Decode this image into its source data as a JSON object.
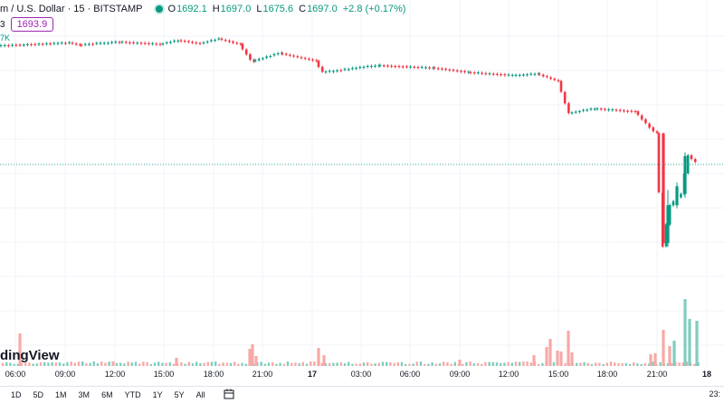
{
  "header": {
    "symbol": "m / U.S. Dollar · 15 · BITSTAMP",
    "o_label": "O",
    "o_value": "1692.1",
    "h_label": "H",
    "h_value": "1697.0",
    "l_label": "L",
    "l_value": "1675.6",
    "c_label": "C",
    "c_value": "1697.0",
    "change": "+2.8 (+0.17%)",
    "row2_fragment": "3",
    "price_box": "1693.9",
    "row3_fragment": "7K"
  },
  "watermark": "dingView",
  "time_axis": [
    {
      "label": "06:00",
      "bold": false
    },
    {
      "label": "09:00",
      "bold": false
    },
    {
      "label": "12:00",
      "bold": false
    },
    {
      "label": "15:00",
      "bold": false
    },
    {
      "label": "18:00",
      "bold": false
    },
    {
      "label": "21:00",
      "bold": false
    },
    {
      "label": "17",
      "bold": true
    },
    {
      "label": "03:00",
      "bold": false
    },
    {
      "label": "06:00",
      "bold": false
    },
    {
      "label": "09:00",
      "bold": false
    },
    {
      "label": "12:00",
      "bold": false
    },
    {
      "label": "15:00",
      "bold": false
    },
    {
      "label": "18:00",
      "bold": false
    },
    {
      "label": "21:00",
      "bold": false
    },
    {
      "label": "18",
      "bold": true
    }
  ],
  "bottom_bar": {
    "ranges": [
      "1D",
      "5D",
      "1M",
      "3M",
      "6M",
      "YTD",
      "1Y",
      "5Y",
      "All"
    ],
    "calendar_icon": "calendar-icon",
    "tz_fragment": "23:"
  },
  "colors": {
    "up": "#089981",
    "down": "#f23645",
    "up_volume": "#7fcdbf",
    "down_volume": "#f7a9a7",
    "price_line": "#26a69a",
    "accent": "#9c27b0"
  },
  "chart_data": {
    "type": "candlestick",
    "title": "",
    "interval": "15",
    "exchange": "BITSTAMP",
    "segments": [
      {
        "from": 1,
        "to": 80,
        "open": 1851,
        "close": 1855
      },
      {
        "from": 80,
        "to": 90,
        "open": 1855,
        "close": 1852
      },
      {
        "from": 90,
        "to": 135,
        "open": 1852,
        "close": 1856
      },
      {
        "from": 135,
        "to": 180,
        "open": 1856,
        "close": 1853
      },
      {
        "from": 180,
        "to": 200,
        "open": 1853,
        "close": 1858
      },
      {
        "from": 200,
        "to": 225,
        "open": 1858,
        "close": 1854
      },
      {
        "from": 225,
        "to": 245,
        "open": 1854,
        "close": 1860
      },
      {
        "from": 245,
        "to": 268,
        "open": 1860,
        "close": 1853
      },
      {
        "from": 268,
        "to": 282,
        "open": 1853,
        "close": 1830
      },
      {
        "from": 282,
        "to": 312,
        "open": 1830,
        "close": 1841
      },
      {
        "from": 312,
        "to": 352,
        "open": 1841,
        "close": 1831
      },
      {
        "from": 352,
        "to": 360,
        "open": 1831,
        "close": 1816
      },
      {
        "from": 360,
        "to": 420,
        "open": 1816,
        "close": 1825
      },
      {
        "from": 420,
        "to": 480,
        "open": 1825,
        "close": 1822
      },
      {
        "from": 480,
        "to": 520,
        "open": 1822,
        "close": 1816
      },
      {
        "from": 520,
        "to": 570,
        "open": 1816,
        "close": 1812
      },
      {
        "from": 570,
        "to": 596,
        "open": 1812,
        "close": 1814
      },
      {
        "from": 596,
        "to": 620,
        "open": 1814,
        "close": 1804
      },
      {
        "from": 620,
        "to": 632,
        "open": 1804,
        "close": 1762
      },
      {
        "from": 632,
        "to": 660,
        "open": 1762,
        "close": 1768
      },
      {
        "from": 660,
        "to": 705,
        "open": 1768,
        "close": 1764
      },
      {
        "from": 705,
        "to": 728,
        "open": 1764,
        "close": 1735
      },
      {
        "from": 728,
        "to": 736,
        "open": 1735,
        "close": 1586
      },
      {
        "from": 736,
        "to": 744,
        "open": 1586,
        "close": 1640
      },
      {
        "from": 744,
        "to": 756,
        "open": 1640,
        "close": 1655
      },
      {
        "from": 756,
        "to": 764,
        "open": 1655,
        "close": 1706
      },
      {
        "from": 764,
        "to": 772,
        "open": 1706,
        "close": 1697
      }
    ],
    "big_candles": [
      {
        "x": 733,
        "open": 1735,
        "high": 1736,
        "low": 1588,
        "close": 1590
      },
      {
        "x": 738,
        "open": 1590,
        "high": 1660,
        "low": 1585,
        "close": 1640
      },
      {
        "x": 748,
        "open": 1640,
        "high": 1670,
        "low": 1636,
        "close": 1665
      },
      {
        "x": 757,
        "open": 1655,
        "high": 1710,
        "low": 1650,
        "close": 1705
      }
    ],
    "last_price": 1693.9,
    "volume_spikes": [
      {
        "x": 22,
        "v": 36
      },
      {
        "x": 125,
        "v": 5
      },
      {
        "x": 195,
        "v": 9
      },
      {
        "x": 276,
        "v": 19
      },
      {
        "x": 279,
        "v": 24
      },
      {
        "x": 283,
        "v": 11
      },
      {
        "x": 352,
        "v": 20
      },
      {
        "x": 358,
        "v": 12
      },
      {
        "x": 508,
        "v": 7
      },
      {
        "x": 590,
        "v": 12
      },
      {
        "x": 604,
        "v": 21
      },
      {
        "x": 608,
        "v": 30
      },
      {
        "x": 616,
        "v": 17
      },
      {
        "x": 620,
        "v": 16
      },
      {
        "x": 628,
        "v": 39
      },
      {
        "x": 632,
        "v": 15
      },
      {
        "x": 719,
        "v": 13
      },
      {
        "x": 724,
        "v": 14
      },
      {
        "x": 733,
        "v": 40
      },
      {
        "x": 740,
        "v": 22
      },
      {
        "x": 745,
        "v": 28
      },
      {
        "x": 757,
        "v": 74
      },
      {
        "x": 762,
        "v": 52
      },
      {
        "x": 770,
        "v": 50
      }
    ]
  }
}
